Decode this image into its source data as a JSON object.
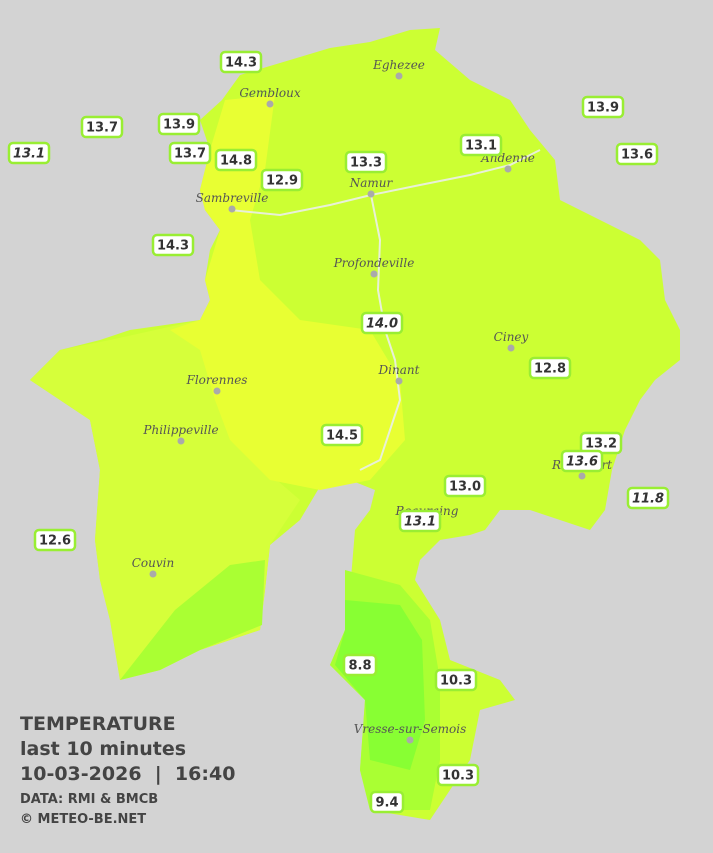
{
  "legend": {
    "title": "TEMPERATURE",
    "subtitle": "last 10 minutes",
    "datetime": "10-03-2026  |  16:40",
    "source": "DATA: RMI & BMCB",
    "credit": "© METEO-BE.NET"
  },
  "cities": [
    "Eghezee",
    "Gembloux",
    "Andenne",
    "Namur",
    "Sambreville",
    "Profondeville",
    "Ciney",
    "Dinant",
    "Florennes",
    "Philippeville",
    "Rochefort",
    "Beauraing",
    "Couvin",
    "Vresse-sur-Semois"
  ],
  "stations": [
    {
      "value": "14.3",
      "italic": false
    },
    {
      "value": "13.7",
      "italic": false
    },
    {
      "value": "13.9",
      "italic": false
    },
    {
      "value": "13.1",
      "italic": true
    },
    {
      "value": "13.7",
      "italic": false
    },
    {
      "value": "14.8",
      "italic": false
    },
    {
      "value": "12.9",
      "italic": false
    },
    {
      "value": "13.3",
      "italic": false
    },
    {
      "value": "13.1",
      "italic": false
    },
    {
      "value": "13.9",
      "italic": false
    },
    {
      "value": "13.6",
      "italic": false
    },
    {
      "value": "14.3",
      "italic": false
    },
    {
      "value": "14.0",
      "italic": true
    },
    {
      "value": "12.8",
      "italic": false
    },
    {
      "value": "14.5",
      "italic": false
    },
    {
      "value": "13.2",
      "italic": false
    },
    {
      "value": "13.6",
      "italic": true
    },
    {
      "value": "11.8",
      "italic": true
    },
    {
      "value": "13.0",
      "italic": false
    },
    {
      "value": "13.1",
      "italic": true
    },
    {
      "value": "12.6",
      "italic": false
    },
    {
      "value": "8.8",
      "italic": false
    },
    {
      "value": "10.3",
      "italic": false
    },
    {
      "value": "10.3",
      "italic": false
    },
    {
      "value": "9.4",
      "italic": false
    }
  ]
}
